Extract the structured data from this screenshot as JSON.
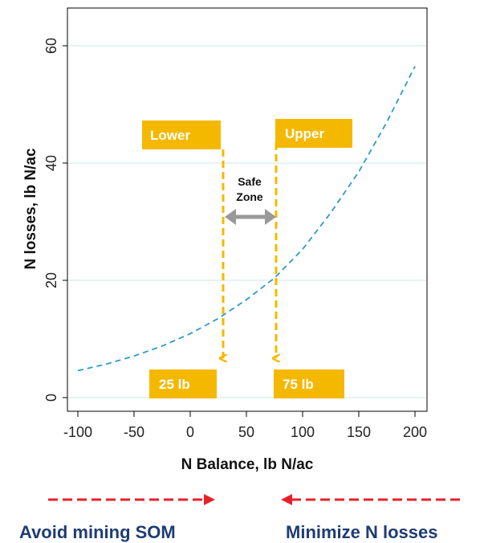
{
  "chart_data": {
    "type": "line",
    "title": "",
    "xlabel": "N Balance, lb N/ac",
    "ylabel": "N losses, lb N/ac",
    "xlim": [
      -100,
      200
    ],
    "ylim": [
      -2,
      65
    ],
    "x_ticks": [
      -100,
      -50,
      0,
      50,
      100,
      150,
      200
    ],
    "y_ticks": [
      0,
      20,
      40,
      60
    ],
    "grid": "horizontal",
    "series": [
      {
        "line_style": "dashed",
        "color": "#2e9bc7",
        "x": [
          -100,
          -75,
          -50,
          -25,
          0,
          25,
          50,
          75,
          100,
          125,
          150,
          175,
          200
        ],
        "y": [
          4.6,
          5.7,
          7.1,
          8.8,
          10.9,
          13.5,
          16.7,
          20.4,
          25.3,
          31.5,
          38.5,
          47.0,
          56.5
        ]
      }
    ],
    "annotations": {
      "lower": {
        "label": "Lower",
        "x": 30,
        "value_label": "25 lb"
      },
      "upper": {
        "label": "Upper",
        "x": 77,
        "value_label": "75 lb"
      },
      "safe_zone": {
        "line1": "Safe",
        "line2": "Zone"
      }
    }
  },
  "captions": {
    "left": "Avoid mining SOM",
    "right": "Minimize N losses"
  },
  "colors": {
    "box": "#f5b800",
    "guide": "#f5b800",
    "safe_arrow": "#999999",
    "caption_arrow": "#e8202a",
    "caption_text": "#1f3c73",
    "grid": "#d6ecec"
  }
}
